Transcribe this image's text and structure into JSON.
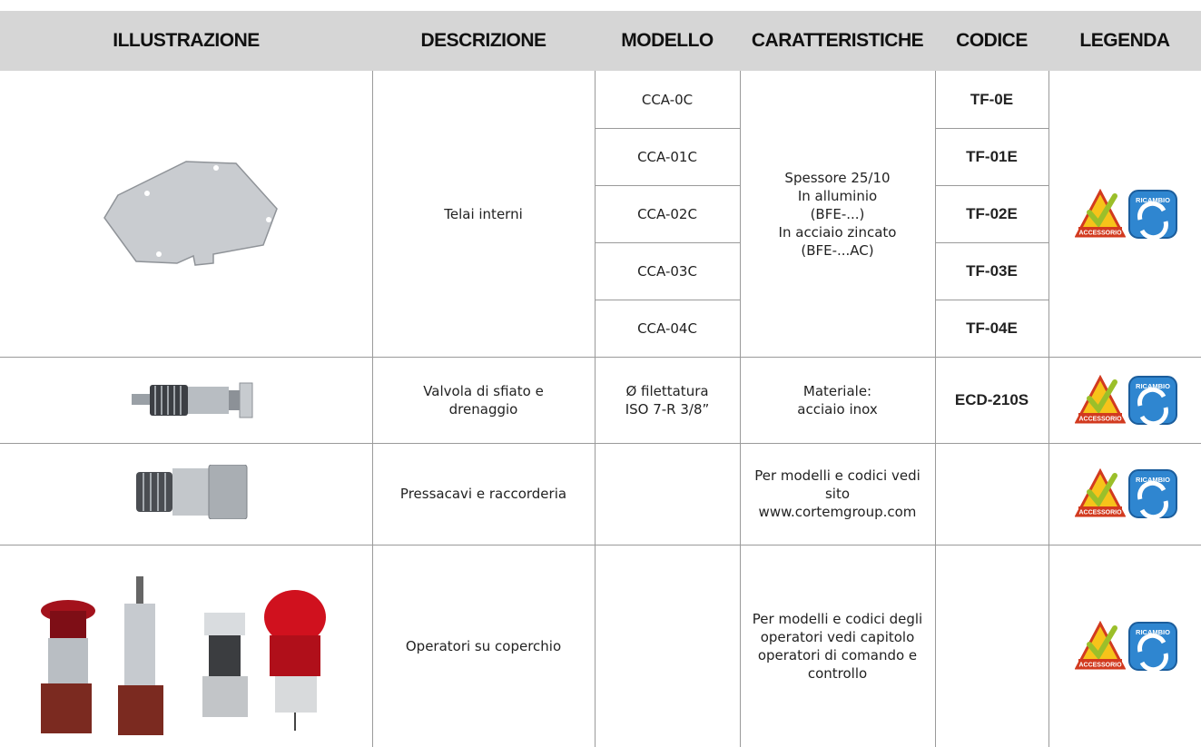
{
  "table": {
    "headers": [
      "ILLUSTRAZIONE",
      "DESCRIZIONE",
      "MODELLO",
      "CARATTERISTICHE",
      "CODICE",
      "LEGENDA"
    ],
    "legend_labels": {
      "accessory": "ACCESSORIO",
      "spare": "RICAMBIO"
    },
    "rows": [
      {
        "description": [
          "Telai interni"
        ],
        "models": [
          [
            "CCA-0C"
          ],
          [
            "CCA-01C"
          ],
          [
            "CCA-02C"
          ],
          [
            "CCA-03C"
          ],
          [
            "CCA-04C"
          ]
        ],
        "features": [
          "Spessore 25/10",
          "In alluminio",
          "(BFE-...)",
          "In acciaio zincato",
          "(BFE-...AC)"
        ],
        "codes": [
          "TF-0E",
          "TF-01E",
          "TF-02E",
          "TF-03E",
          "TF-04E"
        ]
      },
      {
        "description": [
          "Valvola di sfiato e",
          "drenaggio"
        ],
        "models": [
          [
            "Ø filettatura",
            "ISO 7-R 3/8”"
          ]
        ],
        "features": [
          "Materiale:",
          "acciaio inox"
        ],
        "codes": [
          "ECD-210S"
        ]
      },
      {
        "description": [
          "Pressacavi e raccorderia"
        ],
        "models": [],
        "features": [
          "Per modelli e codici vedi",
          "sito",
          "www.cortemgroup.com"
        ],
        "codes": []
      },
      {
        "description": [
          "Operatori su coperchio"
        ],
        "models": [],
        "features": [
          "Per modelli e codici degli",
          "operatori vedi capitolo",
          "operatori di comando e",
          "controllo"
        ],
        "codes": []
      }
    ]
  }
}
